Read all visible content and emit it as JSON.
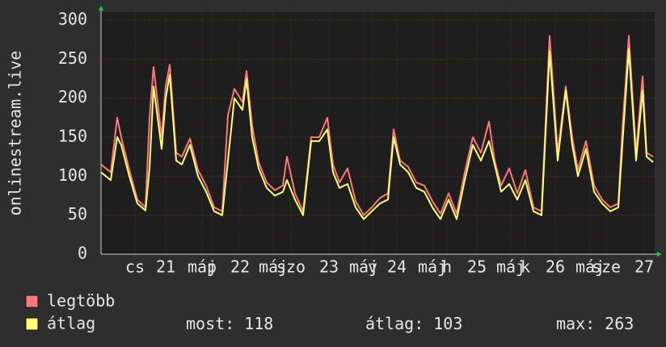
{
  "chart_data": {
    "type": "line",
    "y_label": "onlinestream.live",
    "x": [
      0,
      3,
      5,
      6.25,
      8.75,
      11.25,
      13.75,
      15,
      16.25,
      18.75,
      20,
      21.25,
      23.25,
      25,
      27.5,
      30,
      32.5,
      35,
      37.5,
      39.25,
      41.25,
      43.75,
      45,
      46.75,
      48.75,
      51.25,
      53.75,
      56.25,
      57.5,
      60,
      62.5,
      65,
      67.5,
      70,
      71.75,
      73.75,
      76.25,
      78.75,
      81.25,
      83.75,
      86.25,
      88.75,
      90.5,
      92.5,
      95,
      97.5,
      100,
      102.5,
      105,
      107.5,
      110,
      112.5,
      115,
      117.5,
      120,
      121.75,
      123.75,
      126.25,
      128.75,
      131.25,
      133.75,
      136.25,
      138.75,
      141.25,
      143.75,
      145.75,
      147.5,
      150,
      152.5,
      155,
      157.5,
      160,
      161.25,
      163.25,
      165.5,
      167.5,
      168.75,
      170.75
    ],
    "series": [
      {
        "name": "legtöbb",
        "color": "#ff7777",
        "values": [
          115,
          105,
          175,
          150,
          108,
          70,
          60,
          175,
          240,
          150,
          215,
          243,
          130,
          125,
          148,
          108,
          88,
          60,
          55,
          178,
          212,
          195,
          235,
          165,
          118,
          92,
          82,
          88,
          125,
          78,
          55,
          150,
          150,
          175,
          115,
          92,
          110,
          68,
          50,
          60,
          72,
          78,
          160,
          120,
          112,
          92,
          88,
          68,
          52,
          78,
          52,
          105,
          150,
          130,
          170,
          120,
          88,
          110,
          78,
          108,
          60,
          55,
          280,
          130,
          215,
          150,
          108,
          145,
          88,
          70,
          60,
          65,
          160,
          280,
          130,
          228,
          130,
          125
        ]
      },
      {
        "name": "átlag",
        "color": "#ffff77",
        "values": [
          105,
          95,
          150,
          140,
          100,
          65,
          56,
          110,
          215,
          135,
          200,
          230,
          120,
          115,
          140,
          100,
          80,
          55,
          50,
          120,
          200,
          185,
          225,
          150,
          110,
          85,
          75,
          80,
          95,
          70,
          50,
          145,
          145,
          160,
          105,
          85,
          90,
          60,
          45,
          55,
          65,
          70,
          150,
          115,
          105,
          85,
          80,
          60,
          45,
          70,
          45,
          95,
          140,
          120,
          145,
          115,
          80,
          90,
          70,
          95,
          55,
          50,
          260,
          120,
          210,
          140,
          100,
          135,
          80,
          65,
          55,
          60,
          140,
          263,
          120,
          210,
          125,
          118
        ]
      }
    ],
    "xlim": [
      0,
      171.25
    ],
    "xticks": [
      {
        "value": 10.5,
        "label": "cs"
      },
      {
        "value": 20,
        "label": "21"
      },
      {
        "value": 31.25,
        "label": "máj"
      },
      {
        "value": 34.25,
        "label": "p"
      },
      {
        "value": 43,
        "label": "22"
      },
      {
        "value": 53.25,
        "label": "máj"
      },
      {
        "value": 58.75,
        "label": "szo"
      },
      {
        "value": 70.5,
        "label": "23"
      },
      {
        "value": 81.25,
        "label": "máj"
      },
      {
        "value": 84,
        "label": "v"
      },
      {
        "value": 91.5,
        "label": "24"
      },
      {
        "value": 102.5,
        "label": "máj"
      },
      {
        "value": 107,
        "label": "h"
      },
      {
        "value": 116.25,
        "label": "25"
      },
      {
        "value": 126.75,
        "label": "máj"
      },
      {
        "value": 131.25,
        "label": "k"
      },
      {
        "value": 140.5,
        "label": "26"
      },
      {
        "value": 151.25,
        "label": "máj"
      },
      {
        "value": 156.25,
        "label": "sze"
      },
      {
        "value": 168,
        "label": "27"
      }
    ],
    "ylim": [
      0,
      300
    ],
    "yticks": [
      0,
      50,
      100,
      150,
      200,
      250,
      300
    ],
    "grid": true,
    "stats": [
      {
        "label": "most:",
        "value": 118
      },
      {
        "label": "átlag:",
        "value": 103
      },
      {
        "label": "max:",
        "value": 263
      }
    ]
  }
}
